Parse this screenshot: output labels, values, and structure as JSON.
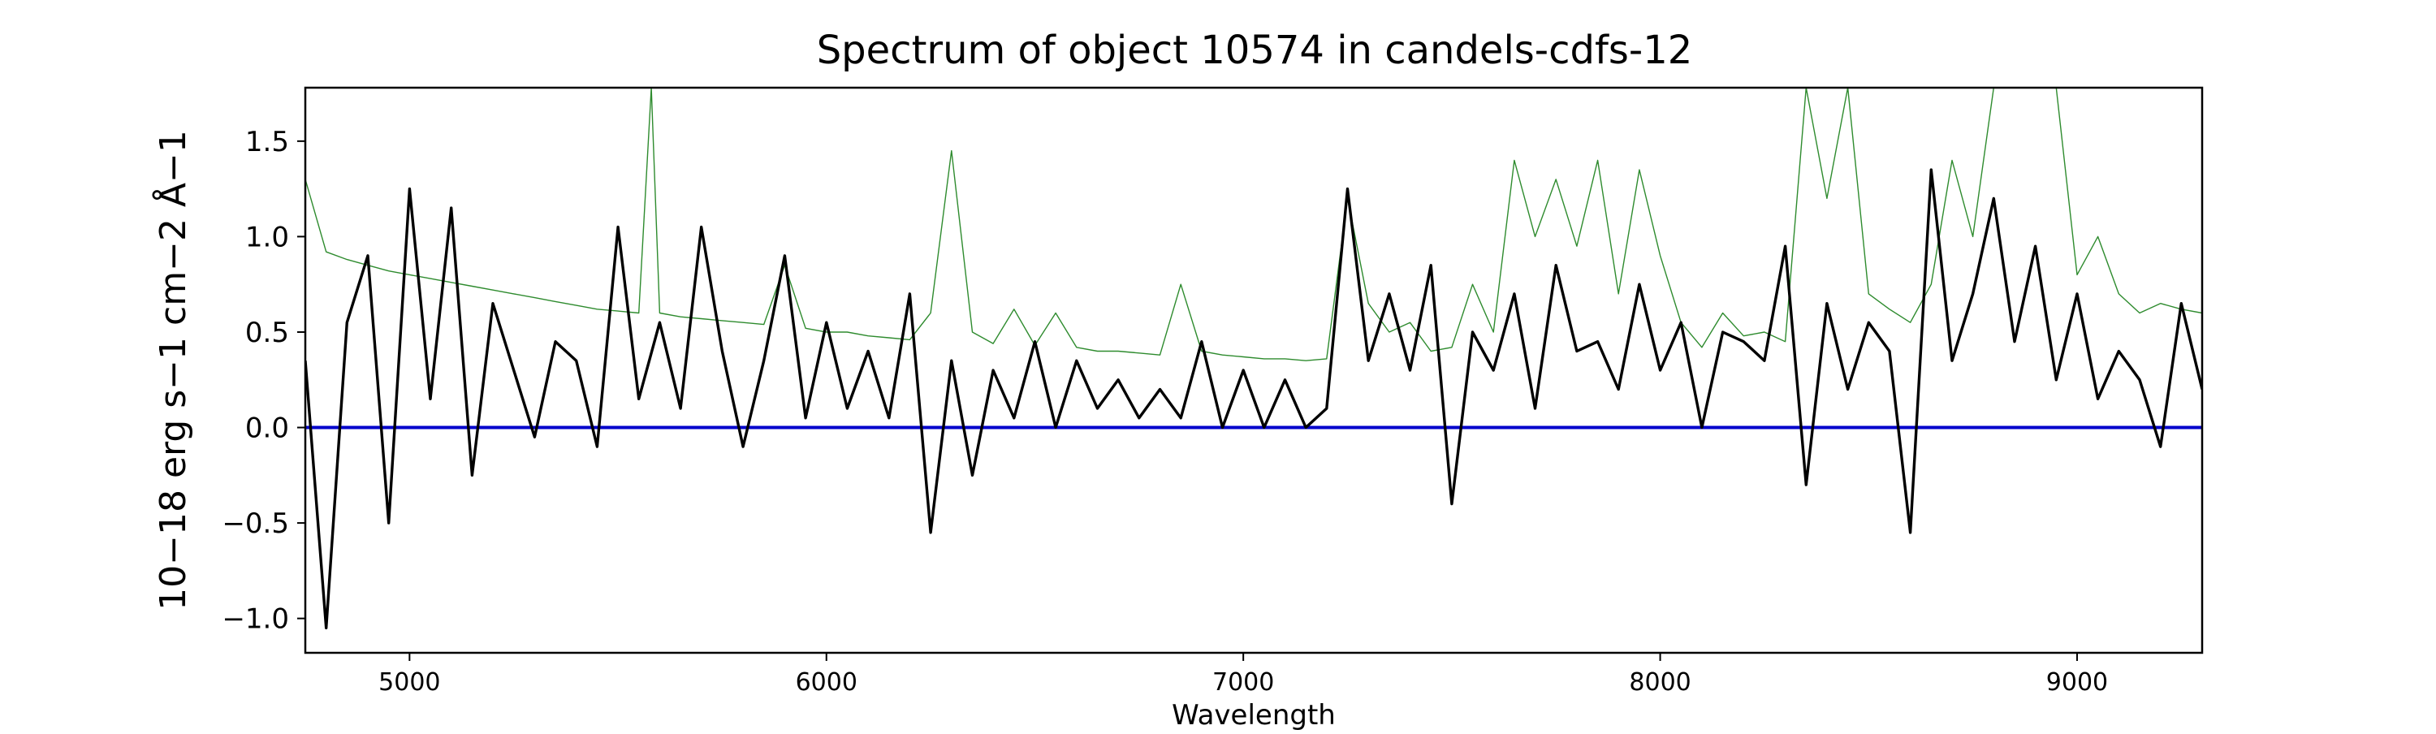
{
  "chart_data": {
    "type": "line",
    "title": "Spectrum of object 10574 in candels-cdfs-12",
    "xlabel": "Wavelength",
    "ylabel": "10−18 erg s−1 cm−2 Å−1",
    "xlim": [
      4750,
      9300
    ],
    "ylim": [
      -1.18,
      1.78
    ],
    "x_ticks": [
      5000,
      6000,
      7000,
      8000,
      9000
    ],
    "x_tick_labels": [
      "5000",
      "6000",
      "7000",
      "8000",
      "9000"
    ],
    "y_ticks": [
      -1.0,
      -0.5,
      0.0,
      0.5,
      1.0,
      1.5
    ],
    "y_tick_labels": [
      "−1.0",
      "−0.5",
      "0.0",
      "0.5",
      "1.0",
      "1.5"
    ],
    "grid": false,
    "series": [
      {
        "role": "flux",
        "color": "#000000",
        "x": [
          4750,
          4800,
          4850,
          4900,
          4950,
          5000,
          5050,
          5100,
          5150,
          5200,
          5250,
          5300,
          5350,
          5400,
          5450,
          5500,
          5550,
          5600,
          5650,
          5700,
          5750,
          5800,
          5850,
          5900,
          5950,
          6000,
          6050,
          6100,
          6150,
          6200,
          6250,
          6300,
          6350,
          6400,
          6450,
          6500,
          6550,
          6600,
          6650,
          6700,
          6750,
          6800,
          6850,
          6900,
          6950,
          7000,
          7050,
          7100,
          7150,
          7200,
          7250,
          7300,
          7350,
          7400,
          7450,
          7500,
          7550,
          7600,
          7650,
          7700,
          7750,
          7800,
          7850,
          7900,
          7950,
          8000,
          8050,
          8100,
          8150,
          8200,
          8250,
          8300,
          8350,
          8400,
          8450,
          8500,
          8550,
          8600,
          8650,
          8700,
          8750,
          8800,
          8850,
          8900,
          8950,
          9000,
          9050,
          9100,
          9150,
          9200,
          9250,
          9300
        ],
        "y": [
          0.35,
          -1.05,
          0.55,
          0.9,
          -0.5,
          1.25,
          0.15,
          1.15,
          -0.25,
          0.65,
          0.3,
          -0.05,
          0.45,
          0.35,
          -0.1,
          1.05,
          0.15,
          0.55,
          0.1,
          1.05,
          0.4,
          -0.1,
          0.35,
          0.9,
          0.05,
          0.55,
          0.1,
          0.4,
          0.05,
          0.7,
          -0.55,
          0.35,
          -0.25,
          0.3,
          0.05,
          0.45,
          0.0,
          0.35,
          0.1,
          0.25,
          0.05,
          0.2,
          0.05,
          0.45,
          0.0,
          0.3,
          0.0,
          0.25,
          0.0,
          0.1,
          1.25,
          0.35,
          0.7,
          0.3,
          0.85,
          -0.4,
          0.5,
          0.3,
          0.7,
          0.1,
          0.85,
          0.4,
          0.45,
          0.2,
          0.75,
          0.3,
          0.55,
          0.0,
          0.5,
          0.45,
          0.35,
          0.95,
          -0.3,
          0.65,
          0.2,
          0.55,
          0.4,
          -0.55,
          1.35,
          0.35,
          0.7,
          1.2,
          0.45,
          0.95,
          0.25,
          0.7,
          0.15,
          0.4,
          0.25,
          -0.1,
          0.65,
          0.2
        ]
      },
      {
        "role": "error",
        "color": "#2e8b2e",
        "x": [
          4750,
          4800,
          4850,
          4900,
          4950,
          5000,
          5050,
          5100,
          5150,
          5200,
          5250,
          5300,
          5350,
          5400,
          5450,
          5500,
          5550,
          5580,
          5600,
          5650,
          5700,
          5750,
          5800,
          5850,
          5900,
          5950,
          6000,
          6050,
          6100,
          6150,
          6200,
          6250,
          6300,
          6350,
          6400,
          6450,
          6500,
          6550,
          6600,
          6650,
          6700,
          6750,
          6800,
          6850,
          6900,
          6950,
          7000,
          7050,
          7100,
          7150,
          7200,
          7250,
          7300,
          7350,
          7400,
          7450,
          7500,
          7550,
          7600,
          7650,
          7700,
          7750,
          7800,
          7850,
          7900,
          7950,
          8000,
          8050,
          8100,
          8150,
          8200,
          8250,
          8300,
          8350,
          8400,
          8450,
          8500,
          8550,
          8600,
          8650,
          8700,
          8750,
          8800,
          8850,
          8900,
          8950,
          9000,
          9050,
          9100,
          9150,
          9200,
          9250,
          9300
        ],
        "y": [
          1.3,
          0.92,
          0.88,
          0.85,
          0.82,
          0.8,
          0.78,
          0.76,
          0.74,
          0.72,
          0.7,
          0.68,
          0.66,
          0.64,
          0.62,
          0.61,
          0.6,
          1.78,
          0.6,
          0.58,
          0.57,
          0.56,
          0.55,
          0.54,
          0.85,
          0.52,
          0.5,
          0.5,
          0.48,
          0.47,
          0.46,
          0.6,
          1.45,
          0.5,
          0.44,
          0.62,
          0.43,
          0.6,
          0.42,
          0.4,
          0.4,
          0.39,
          0.38,
          0.75,
          0.4,
          0.38,
          0.37,
          0.36,
          0.36,
          0.35,
          0.36,
          1.2,
          0.65,
          0.5,
          0.55,
          0.4,
          0.42,
          0.75,
          0.5,
          1.4,
          1.0,
          1.3,
          0.95,
          1.4,
          0.7,
          1.35,
          0.9,
          0.55,
          0.42,
          0.6,
          0.48,
          0.5,
          0.45,
          1.78,
          1.2,
          1.78,
          0.7,
          0.62,
          0.55,
          0.75,
          1.4,
          1.0,
          1.78,
          1.78,
          1.78,
          1.78,
          0.8,
          1.0,
          0.7,
          0.6,
          0.65,
          0.62,
          0.6
        ]
      },
      {
        "role": "zero",
        "color": "#0000cc",
        "x": [
          4750,
          9300
        ],
        "y": [
          0.0,
          0.0
        ]
      }
    ]
  }
}
